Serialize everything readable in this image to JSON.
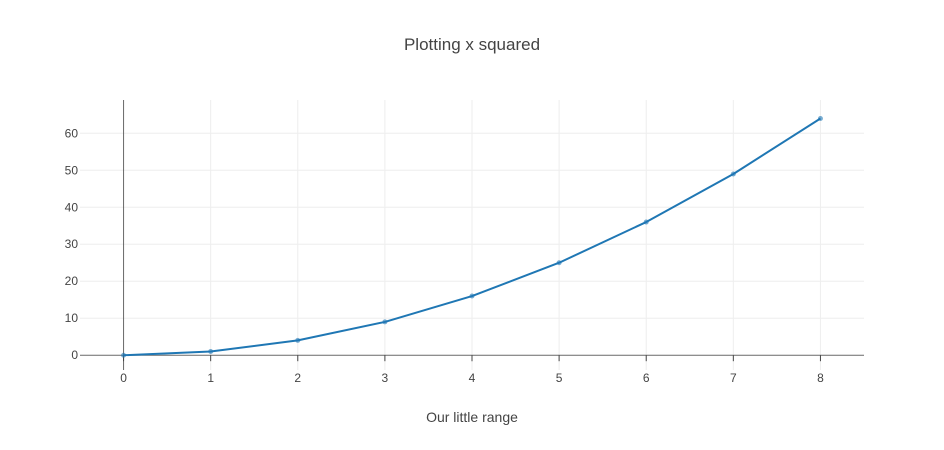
{
  "chart_data": {
    "type": "line",
    "title": "Plotting x squared",
    "xlabel": "Our little range",
    "ylabel": "",
    "x": [
      0,
      1,
      2,
      3,
      4,
      5,
      6,
      7,
      8
    ],
    "series": [
      {
        "values": [
          0,
          1,
          4,
          9,
          16,
          25,
          36,
          49,
          64
        ],
        "color": "#1f77b4"
      }
    ],
    "xlim": [
      -0.5,
      8.5
    ],
    "ylim": [
      -4,
      69
    ],
    "x_ticks": [
      "0",
      "1",
      "2",
      "3",
      "4",
      "5",
      "6",
      "7",
      "8"
    ],
    "y_ticks": [
      "0",
      "10",
      "20",
      "30",
      "40",
      "50",
      "60"
    ],
    "grid": true,
    "legend": "none"
  }
}
